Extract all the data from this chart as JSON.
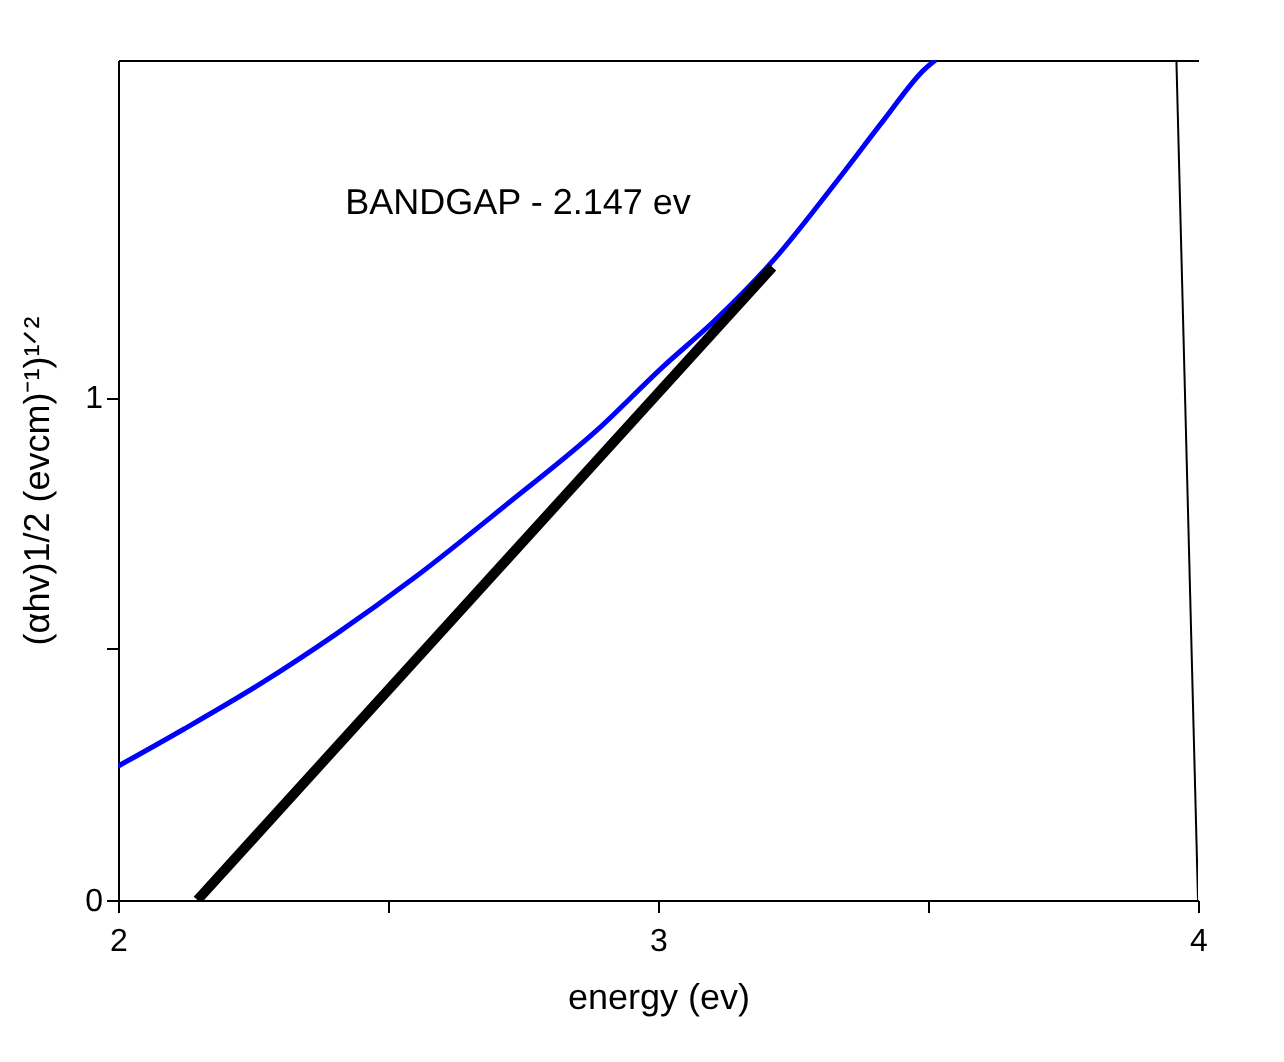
{
  "chart_data": {
    "type": "line",
    "xlabel": "energy (ev)",
    "ylabel": "(αhv)1/2 (evcm)⁻¹)¹ᐟ²",
    "annotations": [
      "BANDGAP - 2.147 ev"
    ],
    "xlim": [
      2,
      4
    ],
    "xticks": [
      2,
      {
        "value": 2.5,
        "label": null
      },
      3,
      {
        "value": 3.5,
        "label": null
      },
      4
    ],
    "ylim": [
      0,
      1.67
    ],
    "yticks": [
      0,
      {
        "value": 0.5,
        "label": null
      },
      1
    ],
    "grid": false,
    "marker": "none",
    "line_style": "solid",
    "series": [
      {
        "color": "#0000ff",
        "x": [
          2.0,
          2.124,
          2.27,
          2.403,
          2.548,
          2.717,
          2.887,
          3.008,
          3.105,
          3.213,
          3.334,
          3.419,
          3.494,
          3.514
        ],
        "values": [
          0.266,
          0.341,
          0.434,
          0.528,
          0.64,
          0.784,
          0.934,
          1.059,
          1.152,
          1.271,
          1.433,
          1.552,
          1.652,
          1.67
        ]
      },
      {
        "color": "#000000",
        "x": [
          2.147,
          3.212
        ],
        "values": [
          0,
          1.258
        ]
      },
      {
        "color": "#000000",
        "x": [
          3.96,
          4.0
        ],
        "values": [
          1.67,
          0
        ]
      }
    ]
  }
}
